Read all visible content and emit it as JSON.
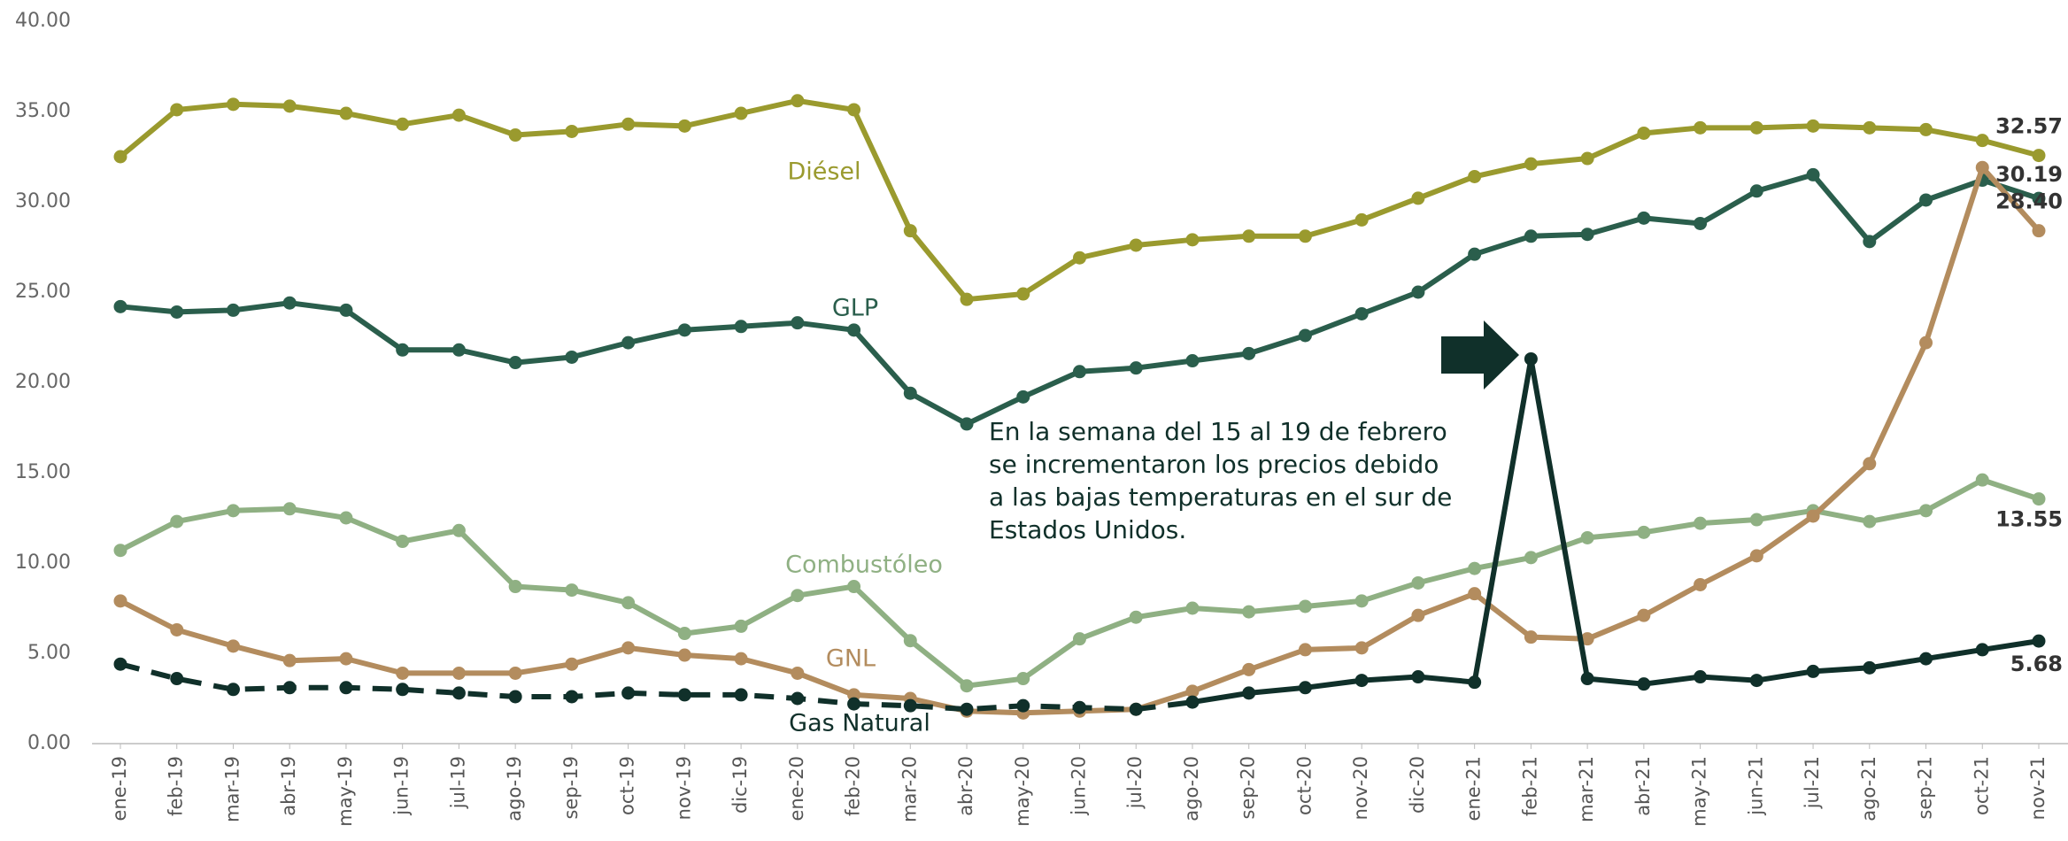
{
  "chart_data": {
    "type": "line",
    "categories": [
      "ene-19",
      "feb-19",
      "mar-19",
      "abr-19",
      "may-19",
      "jun-19",
      "jul-19",
      "ago-19",
      "sep-19",
      "oct-19",
      "nov-19",
      "dic-19",
      "ene-20",
      "feb-20",
      "mar-20",
      "abr-20",
      "may-20",
      "jun-20",
      "jul-20",
      "ago-20",
      "sep-20",
      "oct-20",
      "nov-20",
      "dic-20",
      "ene-21",
      "feb-21",
      "mar-21",
      "abr-21",
      "may-21",
      "jun-21",
      "jul-21",
      "ago-21",
      "sep-21",
      "oct-21",
      "nov-21"
    ],
    "ylim": [
      0,
      40
    ],
    "yticks": [
      {
        "value": 0,
        "label": "0.00"
      },
      {
        "value": 5,
        "label": "5.00"
      },
      {
        "value": 10,
        "label": "10.00"
      },
      {
        "value": 15,
        "label": "15.00"
      },
      {
        "value": 20,
        "label": "20.00"
      },
      {
        "value": 25,
        "label": "25.00"
      },
      {
        "value": 30,
        "label": "30.00"
      },
      {
        "value": 35,
        "label": "35.00"
      },
      {
        "value": 40,
        "label": "40.00"
      }
    ],
    "grid": false,
    "annotation": [
      "En la semana del 15 al 19 de febrero",
      "se incrementaron los precios debido",
      "a las bajas temperaturas en el sur de",
      "Estados Unidos."
    ],
    "series": [
      {
        "name": "Diésel",
        "color": "#9a9a2e",
        "values": [
          32.5,
          35.1,
          35.4,
          35.3,
          34.9,
          34.3,
          34.8,
          33.7,
          33.9,
          34.3,
          34.2,
          34.9,
          35.6,
          35.1,
          28.4,
          24.6,
          24.9,
          26.9,
          27.6,
          27.9,
          28.1,
          28.1,
          29.0,
          30.2,
          31.4,
          32.1,
          32.4,
          33.8,
          34.1,
          34.1,
          34.2,
          34.1,
          34.0,
          33.4,
          32.57
        ],
        "value_labels": [
          null,
          null,
          null,
          null,
          null,
          null,
          null,
          null,
          null,
          null,
          null,
          null,
          null,
          null,
          null,
          null,
          null,
          null,
          null,
          null,
          null,
          null,
          null,
          null,
          null,
          null,
          null,
          null,
          null,
          null,
          null,
          null,
          null,
          null,
          "32.57"
        ]
      },
      {
        "name": "GLP",
        "color": "#2a5e4c",
        "values": [
          24.2,
          23.9,
          24.0,
          24.4,
          24.0,
          21.8,
          21.8,
          21.1,
          21.4,
          22.2,
          22.9,
          23.1,
          23.3,
          22.9,
          19.4,
          17.7,
          19.2,
          20.6,
          20.8,
          21.2,
          21.6,
          22.6,
          23.8,
          25.0,
          27.1,
          28.1,
          28.2,
          29.1,
          28.8,
          30.6,
          31.5,
          27.8,
          30.1,
          31.2,
          30.19
        ],
        "value_labels": [
          null,
          null,
          null,
          null,
          null,
          null,
          null,
          null,
          null,
          null,
          null,
          null,
          null,
          null,
          null,
          null,
          null,
          null,
          null,
          null,
          null,
          null,
          null,
          null,
          null,
          null,
          null,
          null,
          null,
          null,
          null,
          null,
          null,
          null,
          "30.19"
        ]
      },
      {
        "name": "Combustóleo",
        "color": "#8fb083",
        "values": [
          10.7,
          12.3,
          12.9,
          13.0,
          12.5,
          11.2,
          11.8,
          8.7,
          8.5,
          7.8,
          6.1,
          6.5,
          8.2,
          8.7,
          5.7,
          3.2,
          3.6,
          5.8,
          7.0,
          7.5,
          7.3,
          7.6,
          7.9,
          8.9,
          9.7,
          10.3,
          11.4,
          11.7,
          12.2,
          12.4,
          12.9,
          12.3,
          12.9,
          14.6,
          13.55
        ],
        "value_labels": [
          null,
          null,
          null,
          null,
          null,
          null,
          null,
          null,
          null,
          null,
          null,
          null,
          null,
          null,
          null,
          null,
          null,
          null,
          null,
          null,
          null,
          null,
          null,
          null,
          null,
          null,
          null,
          null,
          null,
          null,
          null,
          null,
          null,
          null,
          "13.55"
        ]
      },
      {
        "name": "GNL",
        "color": "#b38c5e",
        "values": [
          7.9,
          6.3,
          5.4,
          4.6,
          4.7,
          3.9,
          3.9,
          3.9,
          4.4,
          5.3,
          4.9,
          4.7,
          3.9,
          2.7,
          2.5,
          1.8,
          1.7,
          1.8,
          1.9,
          2.9,
          4.1,
          5.2,
          5.3,
          7.1,
          8.3,
          5.9,
          5.8,
          7.1,
          8.8,
          10.4,
          12.6,
          15.5,
          22.2,
          31.9,
          28.4
        ],
        "value_labels": [
          null,
          null,
          null,
          null,
          null,
          null,
          null,
          null,
          null,
          null,
          null,
          null,
          null,
          null,
          null,
          null,
          null,
          null,
          null,
          null,
          null,
          null,
          null,
          null,
          null,
          null,
          null,
          null,
          null,
          null,
          null,
          null,
          null,
          null,
          "28.40"
        ]
      },
      {
        "name": "Gas Natural",
        "color": "#10302a",
        "dash_through": "ago-20",
        "values": [
          4.4,
          3.6,
          3.0,
          3.1,
          3.1,
          3.0,
          2.8,
          2.6,
          2.6,
          2.8,
          2.7,
          2.7,
          2.5,
          2.2,
          2.1,
          1.9,
          2.1,
          2.0,
          1.9,
          2.3,
          2.8,
          3.1,
          3.5,
          3.7,
          3.4,
          21.3,
          3.6,
          3.3,
          3.7,
          3.5,
          4.0,
          4.2,
          4.7,
          5.2,
          5.68
        ],
        "value_labels": [
          null,
          null,
          null,
          null,
          null,
          null,
          null,
          null,
          null,
          null,
          null,
          null,
          null,
          null,
          null,
          null,
          null,
          null,
          null,
          null,
          null,
          null,
          null,
          null,
          null,
          null,
          null,
          null,
          null,
          null,
          null,
          null,
          null,
          null,
          "5.68"
        ]
      }
    ]
  }
}
